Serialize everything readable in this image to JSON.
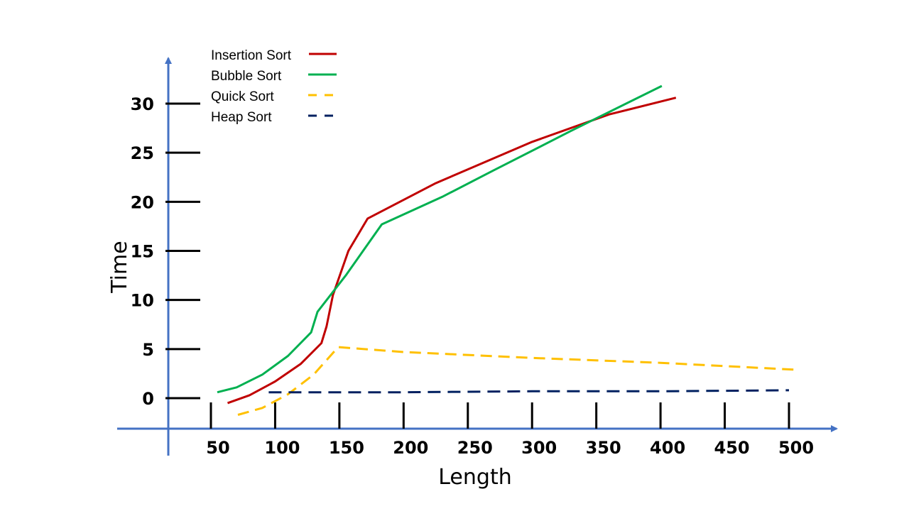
{
  "chart_data": {
    "type": "line",
    "title": "",
    "xlabel": "Length",
    "ylabel": "Time",
    "xlim": [
      40,
      510
    ],
    "ylim": [
      -3,
      35
    ],
    "x_ticks": [
      50,
      100,
      150,
      200,
      250,
      300,
      350,
      400,
      450,
      500
    ],
    "y_ticks": [
      0,
      5,
      10,
      15,
      20,
      25,
      30
    ],
    "grid": false,
    "legend_position": "top-left",
    "series": [
      {
        "name": "Insertion Sort",
        "color": "#C00000",
        "dash": "solid",
        "points": [
          [
            63,
            -0.5
          ],
          [
            80,
            0.3
          ],
          [
            100,
            1.7
          ],
          [
            120,
            3.5
          ],
          [
            136,
            5.6
          ],
          [
            140,
            7.3
          ],
          [
            145,
            10.5
          ],
          [
            157,
            15.0
          ],
          [
            172,
            18.3
          ],
          [
            225,
            21.9
          ],
          [
            300,
            26.1
          ],
          [
            360,
            28.9
          ],
          [
            412,
            30.6
          ]
        ]
      },
      {
        "name": "Bubble Sort",
        "color": "#00B050",
        "dash": "solid",
        "points": [
          [
            55,
            0.6
          ],
          [
            70,
            1.1
          ],
          [
            90,
            2.4
          ],
          [
            110,
            4.3
          ],
          [
            128,
            6.7
          ],
          [
            133,
            8.8
          ],
          [
            155,
            12.5
          ],
          [
            183,
            17.7
          ],
          [
            230,
            20.5
          ],
          [
            270,
            23.2
          ],
          [
            330,
            27.2
          ],
          [
            401,
            31.8
          ]
        ]
      },
      {
        "name": "Quick Sort",
        "color": "#FFC000",
        "dash": "dashed",
        "points": [
          [
            71,
            -1.7
          ],
          [
            90,
            -1.0
          ],
          [
            110,
            0.4
          ],
          [
            130,
            2.4
          ],
          [
            149,
            5.2
          ],
          [
            200,
            4.7
          ],
          [
            300,
            4.1
          ],
          [
            400,
            3.6
          ],
          [
            505,
            2.9
          ]
        ]
      },
      {
        "name": "Heap Sort",
        "color": "#002060",
        "dash": "dashed",
        "points": [
          [
            95,
            0.6
          ],
          [
            200,
            0.6
          ],
          [
            300,
            0.7
          ],
          [
            400,
            0.7
          ],
          [
            500,
            0.8
          ]
        ]
      }
    ]
  }
}
